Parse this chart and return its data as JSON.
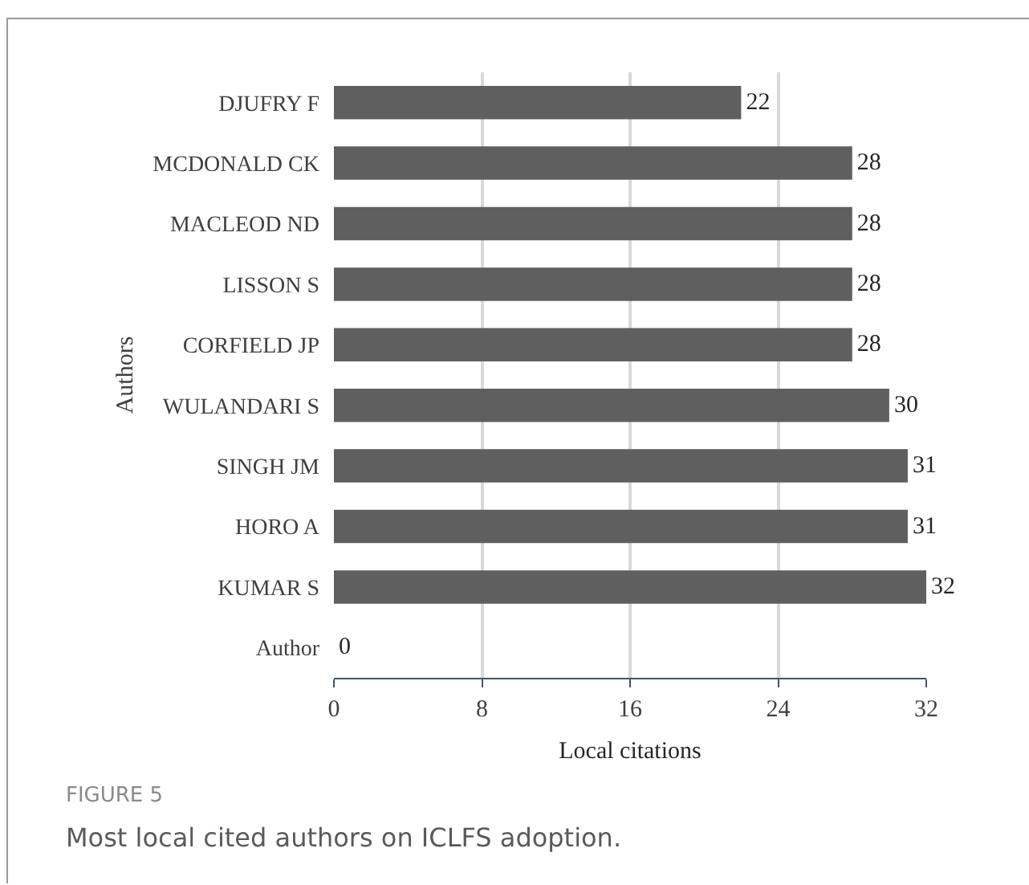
{
  "chart_data": {
    "type": "bar",
    "orientation": "horizontal",
    "xlabel": "Local citations",
    "ylabel": "Authors",
    "categories": [
      "DJUFRY F",
      "MCDONALD CK",
      "MACLEOD ND",
      "LISSON S",
      "CORFIELD JP",
      "WULANDARI S",
      "SINGH JM",
      "HORO A",
      "KUMAR S",
      "Author"
    ],
    "values": [
      22,
      28,
      28,
      28,
      28,
      30,
      31,
      31,
      32,
      0
    ],
    "color": "#5f5f5f",
    "xlim": [
      0,
      32
    ],
    "xticks": [
      0,
      8,
      16,
      24,
      32
    ],
    "grid": "x",
    "data_labels": true,
    "annotations": [
      "FIGURE 5",
      "Most local cited authors on ICLFS adoption."
    ]
  }
}
